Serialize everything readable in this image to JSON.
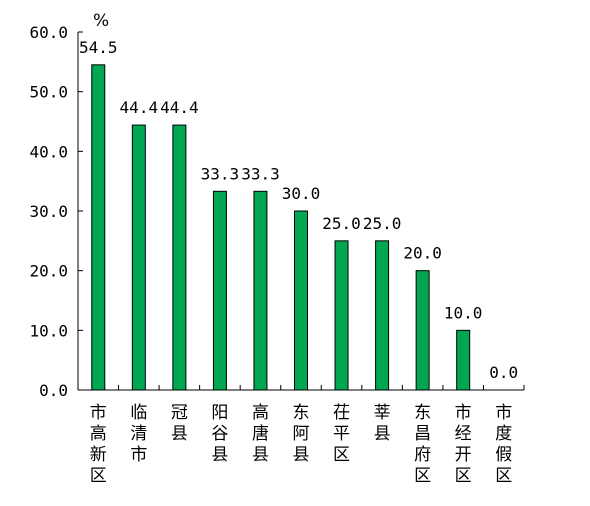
{
  "chart_data": {
    "type": "bar",
    "unit": "%",
    "categories": [
      "市高新区",
      "临清市",
      "冠县",
      "阳谷县",
      "高唐县",
      "东阿县",
      "茌平区",
      "莘县",
      "东昌府区",
      "市经开区",
      "市度假区"
    ],
    "values": [
      54.5,
      44.4,
      44.4,
      33.3,
      33.3,
      30.0,
      25.0,
      25.0,
      20.0,
      10.0,
      0.0
    ],
    "value_labels": [
      "54.5",
      "44.4",
      "44.4",
      "33.3",
      "33.3",
      "30.0",
      "25.0",
      "25.0",
      "20.0",
      "10.0",
      "0.0"
    ],
    "ylim": [
      0,
      60
    ],
    "yticks": [
      0,
      10,
      20,
      30,
      40,
      50,
      60
    ],
    "ytick_labels": [
      "0.0",
      "10.0",
      "20.0",
      "30.0",
      "40.0",
      "50.0",
      "60.0"
    ],
    "bar_color": "#00a651",
    "bar_edge_color": "#000000",
    "grid": false,
    "legend": "none"
  }
}
